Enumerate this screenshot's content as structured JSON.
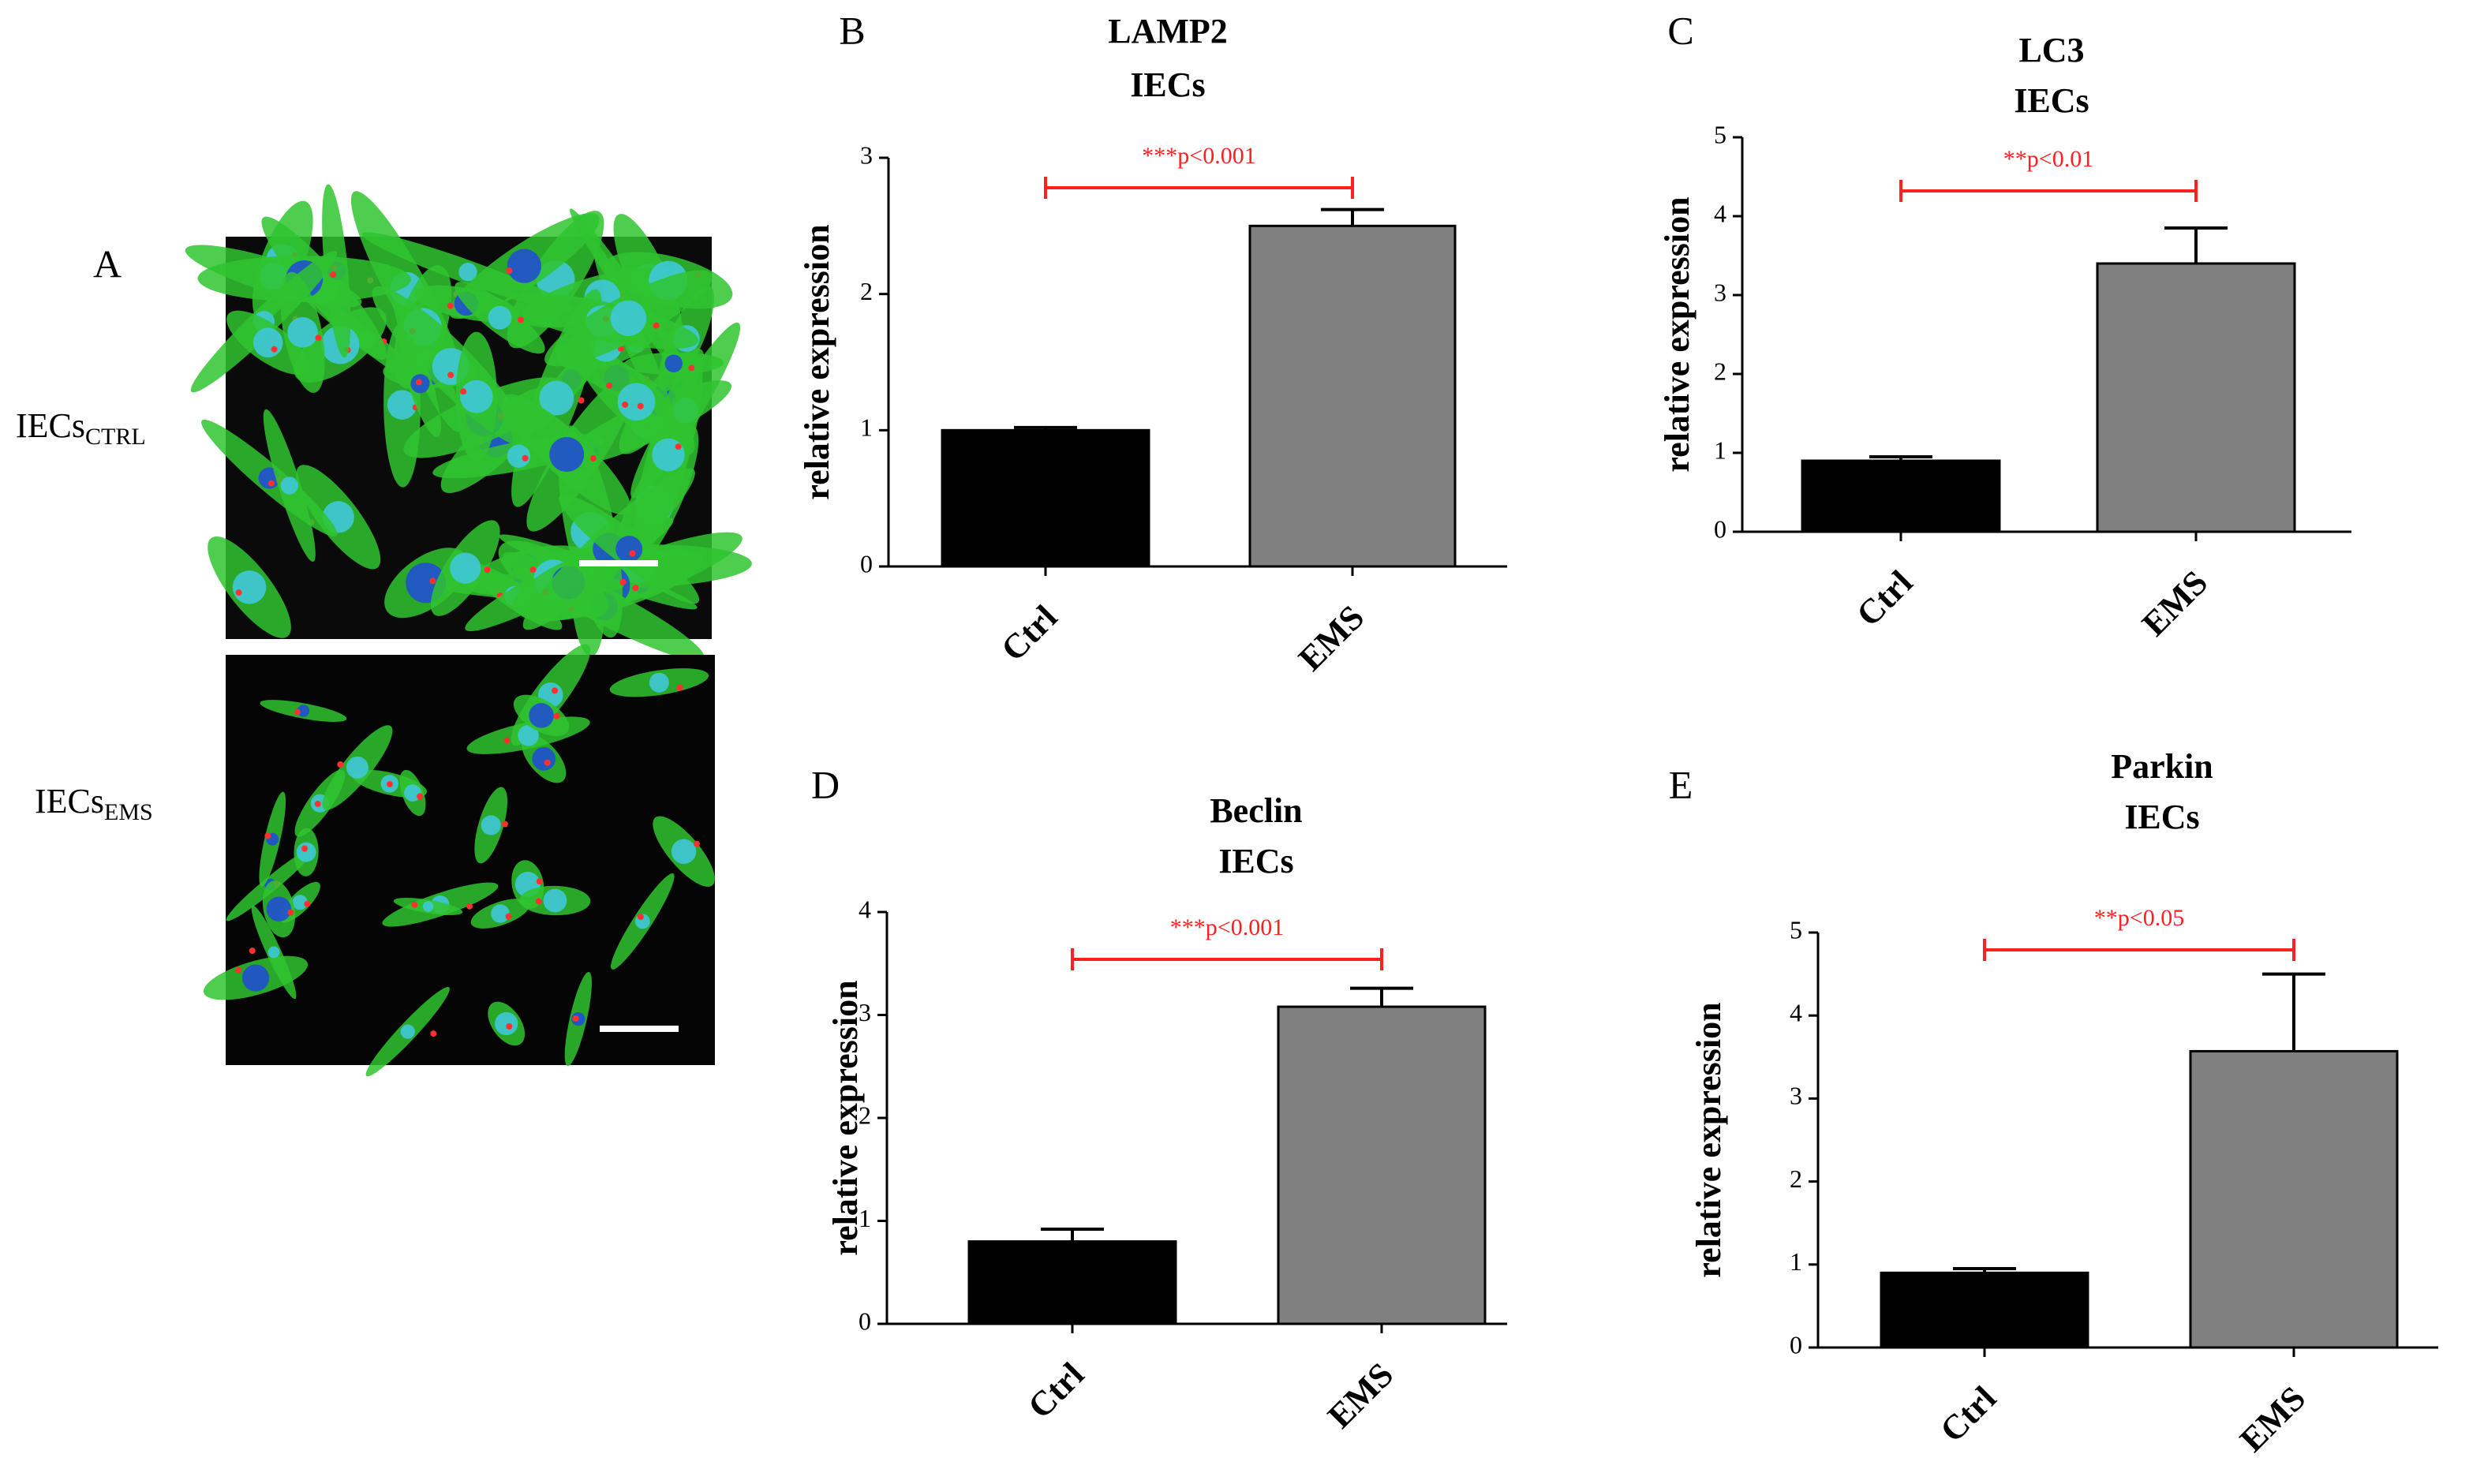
{
  "panel_a": {
    "label": "A",
    "rows": [
      {
        "label": "IECs",
        "subscript": "CTRL"
      },
      {
        "label": "IECs",
        "subscript": "EMS"
      }
    ]
  },
  "chart_data": [
    {
      "type": "bar",
      "panel": "B",
      "title": "LAMP2",
      "subtitle": "IECs",
      "ylabel": "relative expression",
      "categories": [
        "Ctrl",
        "EMS"
      ],
      "values": [
        1.0,
        2.5
      ],
      "errors": [
        0.02,
        0.12
      ],
      "colors": [
        "#000000",
        "#808080"
      ],
      "ylim": [
        0,
        3
      ],
      "yticks": [
        0,
        1,
        2,
        3
      ],
      "annotation": "***p<0.001",
      "annotation_color": "#ff2020"
    },
    {
      "type": "bar",
      "panel": "C",
      "title": "LC3",
      "subtitle": "IECs",
      "ylabel": "relative expression",
      "categories": [
        "Ctrl",
        "EMS"
      ],
      "values": [
        0.9,
        3.4
      ],
      "errors": [
        0.05,
        0.45
      ],
      "colors": [
        "#000000",
        "#808080"
      ],
      "ylim": [
        0,
        5
      ],
      "yticks": [
        0,
        1,
        2,
        3,
        4,
        5
      ],
      "annotation": "**p<0.01",
      "annotation_color": "#ff2020"
    },
    {
      "type": "bar",
      "panel": "D",
      "title": "Beclin",
      "subtitle": "IECs",
      "ylabel": "relative expression",
      "categories": [
        "Ctrl",
        "EMS"
      ],
      "values": [
        0.8,
        3.08
      ],
      "errors": [
        0.12,
        0.18
      ],
      "colors": [
        "#000000",
        "#808080"
      ],
      "ylim": [
        0,
        4
      ],
      "yticks": [
        0,
        1,
        2,
        3,
        4
      ],
      "annotation": "***p<0.001",
      "annotation_color": "#ff2020"
    },
    {
      "type": "bar",
      "panel": "E",
      "title": "Parkin",
      "subtitle": "IECs",
      "ylabel": "relative expression",
      "categories": [
        "Ctrl",
        "EMS"
      ],
      "values": [
        0.9,
        3.57
      ],
      "errors": [
        0.05,
        0.93
      ],
      "colors": [
        "#000000",
        "#808080"
      ],
      "ylim": [
        0,
        5
      ],
      "yticks": [
        0,
        1,
        2,
        3,
        4,
        5
      ],
      "annotation": "**p<0.05",
      "annotation_color": "#ff2020"
    }
  ]
}
